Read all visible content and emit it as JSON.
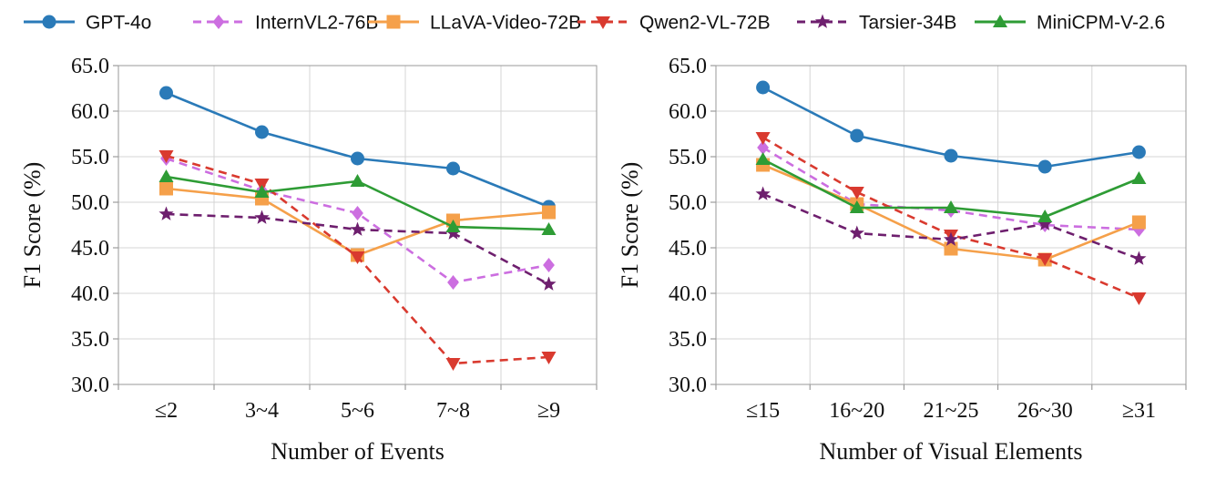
{
  "legend": [
    {
      "name": "GPT-4o",
      "color": "#2a7ab8",
      "marker": "circle",
      "dash": false
    },
    {
      "name": "InternVL2-76B",
      "color": "#cc6ee0",
      "marker": "diamond",
      "dash": true
    },
    {
      "name": "LLaVA-Video-72B",
      "color": "#f5a04a",
      "marker": "square",
      "dash": false
    },
    {
      "name": "Qwen2-VL-72B",
      "color": "#d93a2f",
      "marker": "triangle-down",
      "dash": true
    },
    {
      "name": "Tarsier-34B",
      "color": "#6e1f6e",
      "marker": "star",
      "dash": true
    },
    {
      "name": "MiniCPM-V-2.6",
      "color": "#2e9c35",
      "marker": "triangle-up",
      "dash": false
    }
  ],
  "chart_data": [
    {
      "type": "line",
      "title": "",
      "xlabel": "Number of Events",
      "ylabel": "F1 Score (%)",
      "categories": [
        "≤2",
        "3~4",
        "5~6",
        "7~8",
        "≥9"
      ],
      "ylim": [
        30,
        65
      ],
      "yticks": [
        "30.0",
        "35.0",
        "40.0",
        "45.0",
        "50.0",
        "55.0",
        "60.0",
        "65.0"
      ],
      "grid": true,
      "series": [
        {
          "name": "GPT-4o",
          "values": [
            62.0,
            57.7,
            54.8,
            53.7,
            49.5
          ]
        },
        {
          "name": "InternVL2-76B",
          "values": [
            54.8,
            51.3,
            48.8,
            41.2,
            43.1
          ]
        },
        {
          "name": "LLaVA-Video-72B",
          "values": [
            51.5,
            50.4,
            44.2,
            48.0,
            48.9
          ]
        },
        {
          "name": "Qwen2-VL-72B",
          "values": [
            55.1,
            52.0,
            44.0,
            32.3,
            33.0
          ]
        },
        {
          "name": "Tarsier-34B",
          "values": [
            48.7,
            48.3,
            47.0,
            46.6,
            41.0
          ]
        },
        {
          "name": "MiniCPM-V-2.6",
          "values": [
            52.8,
            51.1,
            52.3,
            47.3,
            47.0
          ]
        }
      ]
    },
    {
      "type": "line",
      "title": "",
      "xlabel": "Number of Visual Elements",
      "ylabel": "F1 Score (%)",
      "categories": [
        "≤15",
        "16~20",
        "21~25",
        "26~30",
        "≥31"
      ],
      "ylim": [
        30,
        65
      ],
      "yticks": [
        "30.0",
        "35.0",
        "40.0",
        "45.0",
        "50.0",
        "55.0",
        "60.0",
        "65.0"
      ],
      "grid": true,
      "series": [
        {
          "name": "GPT-4o",
          "values": [
            62.6,
            57.3,
            55.1,
            53.9,
            55.5
          ]
        },
        {
          "name": "InternVL2-76B",
          "values": [
            56.0,
            49.8,
            49.1,
            47.5,
            47.0
          ]
        },
        {
          "name": "LLaVA-Video-72B",
          "values": [
            54.1,
            49.8,
            44.9,
            43.7,
            47.8
          ]
        },
        {
          "name": "Qwen2-VL-72B",
          "values": [
            57.1,
            51.1,
            46.4,
            43.8,
            39.5
          ]
        },
        {
          "name": "Tarsier-34B",
          "values": [
            50.9,
            46.6,
            45.9,
            47.6,
            43.8
          ]
        },
        {
          "name": "MiniCPM-V-2.6",
          "values": [
            54.7,
            49.4,
            49.4,
            48.4,
            52.6
          ]
        }
      ]
    }
  ]
}
